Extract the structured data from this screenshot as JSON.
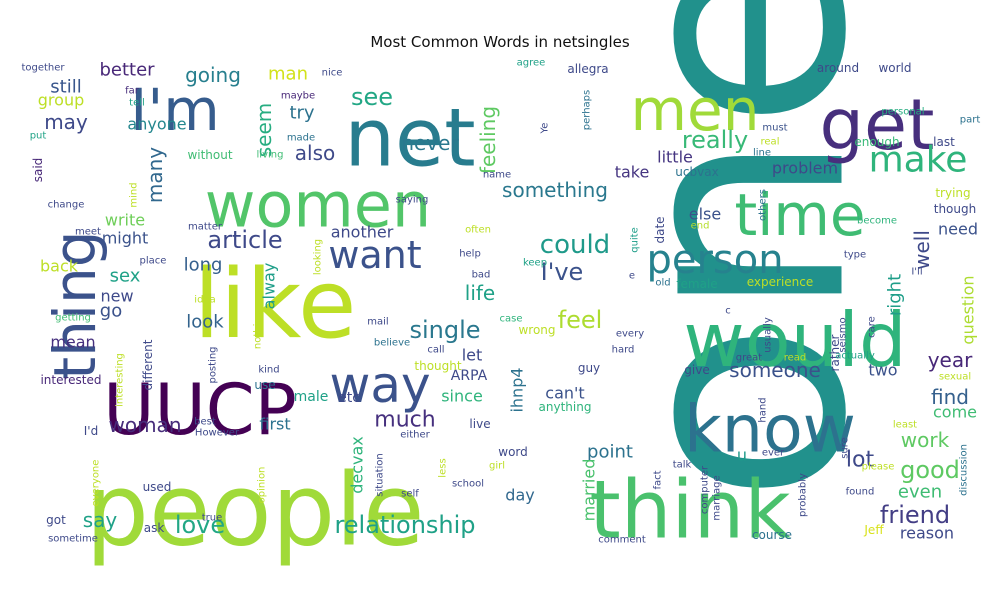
{
  "chart_data": {
    "type": "wordcloud",
    "title": "Most Common Words in netsingles",
    "palette": "viridis",
    "words": [
      {
        "text": "one",
        "color": "#21918c"
      },
      {
        "text": "people",
        "color": "#a0da39"
      },
      {
        "text": "like",
        "color": "#bddf26"
      },
      {
        "text": "would",
        "color": "#2fb47c"
      },
      {
        "text": "think",
        "color": "#4ac16d"
      },
      {
        "text": "know",
        "color": "#2c728e"
      },
      {
        "text": "women",
        "color": "#52c569"
      },
      {
        "text": "net",
        "color": "#287c8e"
      },
      {
        "text": "get",
        "color": "#472f7d"
      },
      {
        "text": "men",
        "color": "#a0da39"
      },
      {
        "text": "I'm",
        "color": "#365c8d"
      },
      {
        "text": "thing",
        "color": "#3b528b"
      },
      {
        "text": "UUCP",
        "color": "#440154"
      },
      {
        "text": "time",
        "color": "#3fbc73"
      },
      {
        "text": "way",
        "color": "#3b528b"
      },
      {
        "text": "want",
        "color": "#3b528b"
      },
      {
        "text": "person",
        "color": "#26828e"
      },
      {
        "text": "make",
        "color": "#2fb47c"
      },
      {
        "text": "relationship",
        "color": "#1fa187"
      },
      {
        "text": "article",
        "color": "#3e4989"
      },
      {
        "text": "really",
        "color": "#38b977"
      },
      {
        "text": "could",
        "color": "#1f9a8a"
      },
      {
        "text": "good",
        "color": "#5ec962"
      },
      {
        "text": "love",
        "color": "#22a785"
      },
      {
        "text": "single",
        "color": "#2a788e"
      },
      {
        "text": "something",
        "color": "#2a788e"
      },
      {
        "text": "friend",
        "color": "#433e85"
      },
      {
        "text": "woman",
        "color": "#472d7b"
      },
      {
        "text": "much",
        "color": "#46307e"
      },
      {
        "text": "also",
        "color": "#3e4989"
      },
      {
        "text": "see",
        "color": "#22a785"
      },
      {
        "text": "feel",
        "color": "#addc30"
      },
      {
        "text": "say",
        "color": "#1fa187"
      },
      {
        "text": "someone",
        "color": "#3b528b"
      },
      {
        "text": "year",
        "color": "#482878"
      },
      {
        "text": "I've",
        "color": "#3b528b"
      },
      {
        "text": "work",
        "color": "#5ec962"
      },
      {
        "text": "even",
        "color": "#3fbc73"
      },
      {
        "text": "find",
        "color": "#35608d"
      },
      {
        "text": "lot",
        "color": "#3e4989"
      },
      {
        "text": "point",
        "color": "#2c728e"
      },
      {
        "text": "life",
        "color": "#1fa187"
      },
      {
        "text": "come",
        "color": "#3fbc73"
      },
      {
        "text": "right",
        "color": "#1f9e89"
      },
      {
        "text": "well",
        "color": "#3e4989"
      },
      {
        "text": "never",
        "color": "#2a788e"
      },
      {
        "text": "feeling",
        "color": "#5ec962"
      },
      {
        "text": "seem",
        "color": "#27ad81"
      },
      {
        "text": "many",
        "color": "#31688e"
      },
      {
        "text": "may",
        "color": "#3e4989"
      },
      {
        "text": "going",
        "color": "#277f8e"
      },
      {
        "text": "anyone",
        "color": "#24878e"
      },
      {
        "text": "better",
        "color": "#482878"
      },
      {
        "text": "still",
        "color": "#39568c"
      },
      {
        "text": "group",
        "color": "#bddf26"
      },
      {
        "text": "man",
        "color": "#d2e21b"
      },
      {
        "text": "try",
        "color": "#2c728e"
      },
      {
        "text": "write",
        "color": "#6ece58"
      },
      {
        "text": "might",
        "color": "#3b528b"
      },
      {
        "text": "sex",
        "color": "#1fa187"
      },
      {
        "text": "new",
        "color": "#3e4989"
      },
      {
        "text": "go",
        "color": "#3b528b"
      },
      {
        "text": "back",
        "color": "#bddf26"
      },
      {
        "text": "long",
        "color": "#355f8d"
      },
      {
        "text": "look",
        "color": "#33638d"
      },
      {
        "text": "mean",
        "color": "#46307e"
      },
      {
        "text": "alway",
        "color": "#1f9e89"
      },
      {
        "text": "first",
        "color": "#2c728e"
      },
      {
        "text": "another",
        "color": "#3e4989"
      },
      {
        "text": "take",
        "color": "#453581"
      },
      {
        "text": "little",
        "color": "#453581"
      },
      {
        "text": "problem",
        "color": "#3e4989"
      },
      {
        "text": "else",
        "color": "#3b528b"
      },
      {
        "text": "need",
        "color": "#3b528b"
      },
      {
        "text": "question",
        "color": "#addc30"
      },
      {
        "text": "two",
        "color": "#3b528b"
      },
      {
        "text": "can't",
        "color": "#3b528b"
      },
      {
        "text": "let",
        "color": "#3e4989"
      },
      {
        "text": "since",
        "color": "#2fb47c"
      },
      {
        "text": "male",
        "color": "#1fa187"
      },
      {
        "text": "etc",
        "color": "#3e4989"
      },
      {
        "text": "ihnp4",
        "color": "#2c728e"
      },
      {
        "text": "ARPA",
        "color": "#3e4989"
      },
      {
        "text": "decvax",
        "color": "#2fb47c"
      },
      {
        "text": "married",
        "color": "#4ac16d"
      },
      {
        "text": "day",
        "color": "#31688e"
      },
      {
        "text": "u",
        "color": "#1f9a8a"
      },
      {
        "text": "reason",
        "color": "#3e4989"
      },
      {
        "text": "course",
        "color": "#2c728e"
      },
      {
        "text": "Jeff",
        "color": "#d8e219"
      },
      {
        "text": "together",
        "color": "#3e4989"
      },
      {
        "text": "said",
        "color": "#482878"
      },
      {
        "text": "put",
        "color": "#20a386"
      },
      {
        "text": "tell",
        "color": "#1fa187"
      },
      {
        "text": "far",
        "color": "#472d7b"
      },
      {
        "text": "without",
        "color": "#3fbc73"
      },
      {
        "text": "living",
        "color": "#3fbc73"
      },
      {
        "text": "made",
        "color": "#2c728e"
      },
      {
        "text": "maybe",
        "color": "#482878"
      },
      {
        "text": "nice",
        "color": "#3e4989"
      },
      {
        "text": "agree",
        "color": "#1fa187"
      },
      {
        "text": "allegra",
        "color": "#3e4989"
      },
      {
        "text": "perhaps",
        "color": "#2c728e"
      },
      {
        "text": "Ye",
        "color": "#3e4989"
      },
      {
        "text": "around",
        "color": "#3e4989"
      },
      {
        "text": "world",
        "color": "#3e4989"
      },
      {
        "text": "personal",
        "color": "#27ad81"
      },
      {
        "text": "part",
        "color": "#2c728e"
      },
      {
        "text": "must",
        "color": "#3b528b"
      },
      {
        "text": "real",
        "color": "#bddf26"
      },
      {
        "text": "line",
        "color": "#2c728e"
      },
      {
        "text": "enough",
        "color": "#38b977"
      },
      {
        "text": "last",
        "color": "#3e4989"
      },
      {
        "text": "others",
        "color": "#2c728e"
      },
      {
        "text": "trying",
        "color": "#bddf26"
      },
      {
        "text": "though",
        "color": "#3e4989"
      },
      {
        "text": "become",
        "color": "#2fb47c"
      },
      {
        "text": "type",
        "color": "#3e4989"
      },
      {
        "text": "end",
        "color": "#b5de2b"
      },
      {
        "text": "date",
        "color": "#3e4989"
      },
      {
        "text": "quite",
        "color": "#1f9e89"
      },
      {
        "text": "name",
        "color": "#3e4989"
      },
      {
        "text": "ucbvax",
        "color": "#2c728e"
      },
      {
        "text": "saying",
        "color": "#3e4989"
      },
      {
        "text": "matter",
        "color": "#3e4989"
      },
      {
        "text": "mind",
        "color": "#bddf26"
      },
      {
        "text": "change",
        "color": "#3e4989"
      },
      {
        "text": "meet",
        "color": "#3e4989"
      },
      {
        "text": "often",
        "color": "#bddf26"
      },
      {
        "text": "help",
        "color": "#3e4989"
      },
      {
        "text": "keep",
        "color": "#1fa187"
      },
      {
        "text": "bad",
        "color": "#3e4989"
      },
      {
        "text": "looking",
        "color": "#bddf26"
      },
      {
        "text": "place",
        "color": "#3e4989"
      },
      {
        "text": "idea",
        "color": "#bddf26"
      },
      {
        "text": "nothing",
        "color": "#bddf26"
      },
      {
        "text": "getting",
        "color": "#3fbc73"
      },
      {
        "text": "mail",
        "color": "#3e4989"
      },
      {
        "text": "case",
        "color": "#2fb47c"
      },
      {
        "text": "wrong",
        "color": "#bddf26"
      },
      {
        "text": "believe",
        "color": "#2c728e"
      },
      {
        "text": "call",
        "color": "#3e4989"
      },
      {
        "text": "every",
        "color": "#3e4989"
      },
      {
        "text": "hard",
        "color": "#3e4989"
      },
      {
        "text": "old",
        "color": "#2c728e"
      },
      {
        "text": "female",
        "color": "#1fa187"
      },
      {
        "text": "experience",
        "color": "#bddf26"
      },
      {
        "text": "usually",
        "color": "#3e4989"
      },
      {
        "text": "seismo",
        "color": "#3e4989"
      },
      {
        "text": "care",
        "color": "#3e4989"
      },
      {
        "text": "I'll",
        "color": "#3e4989"
      },
      {
        "text": "rather",
        "color": "#3e4989"
      },
      {
        "text": "actually",
        "color": "#1fa187"
      },
      {
        "text": "great",
        "color": "#3e4989"
      },
      {
        "text": "read",
        "color": "#bddf26"
      },
      {
        "text": "sexual",
        "color": "#bddf26"
      },
      {
        "text": "interested",
        "color": "#482878"
      },
      {
        "text": "interesting",
        "color": "#bddf26"
      },
      {
        "text": "different",
        "color": "#3e4989"
      },
      {
        "text": "posting",
        "color": "#3e4989"
      },
      {
        "text": "kind",
        "color": "#3e4989"
      },
      {
        "text": "use",
        "color": "#2c728e"
      },
      {
        "text": "thought",
        "color": "#bddf26"
      },
      {
        "text": "guy",
        "color": "#3e4989"
      },
      {
        "text": "give",
        "color": "#3e4989"
      },
      {
        "text": "anything",
        "color": "#2fb47c"
      },
      {
        "text": "least",
        "color": "#bddf26"
      },
      {
        "text": "discussion",
        "color": "#2c728e"
      },
      {
        "text": "hand",
        "color": "#3e4989"
      },
      {
        "text": "ever",
        "color": "#3e4989"
      },
      {
        "text": "sure",
        "color": "#3e4989"
      },
      {
        "text": "please",
        "color": "#bddf26"
      },
      {
        "text": "found",
        "color": "#3e4989"
      },
      {
        "text": "I'd",
        "color": "#3e4989"
      },
      {
        "text": "everyone",
        "color": "#bddf26"
      },
      {
        "text": "best",
        "color": "#3e4989"
      },
      {
        "text": "However",
        "color": "#3e4989"
      },
      {
        "text": "opinion",
        "color": "#bddf26"
      },
      {
        "text": "either",
        "color": "#3e4989"
      },
      {
        "text": "live",
        "color": "#3e4989"
      },
      {
        "text": "word",
        "color": "#3e4989"
      },
      {
        "text": "less",
        "color": "#bddf26"
      },
      {
        "text": "situation",
        "color": "#3e4989"
      },
      {
        "text": "girl",
        "color": "#bddf26"
      },
      {
        "text": "school",
        "color": "#3e4989"
      },
      {
        "text": "self",
        "color": "#3e4989"
      },
      {
        "text": "used",
        "color": "#3e4989"
      },
      {
        "text": "true",
        "color": "#3e4989"
      },
      {
        "text": "got",
        "color": "#3e4989"
      },
      {
        "text": "ask",
        "color": "#3e4989"
      },
      {
        "text": "sometime",
        "color": "#3e4989"
      },
      {
        "text": "fact",
        "color": "#3e4989"
      },
      {
        "text": "talk",
        "color": "#3e4989"
      },
      {
        "text": "computer",
        "color": "#3e4989"
      },
      {
        "text": "marriage",
        "color": "#3e4989"
      },
      {
        "text": "probably",
        "color": "#3e4989"
      },
      {
        "text": "comment",
        "color": "#3e4989"
      },
      {
        "text": "e",
        "color": "#3e4989"
      },
      {
        "text": "c",
        "color": "#3e4989"
      }
    ]
  }
}
